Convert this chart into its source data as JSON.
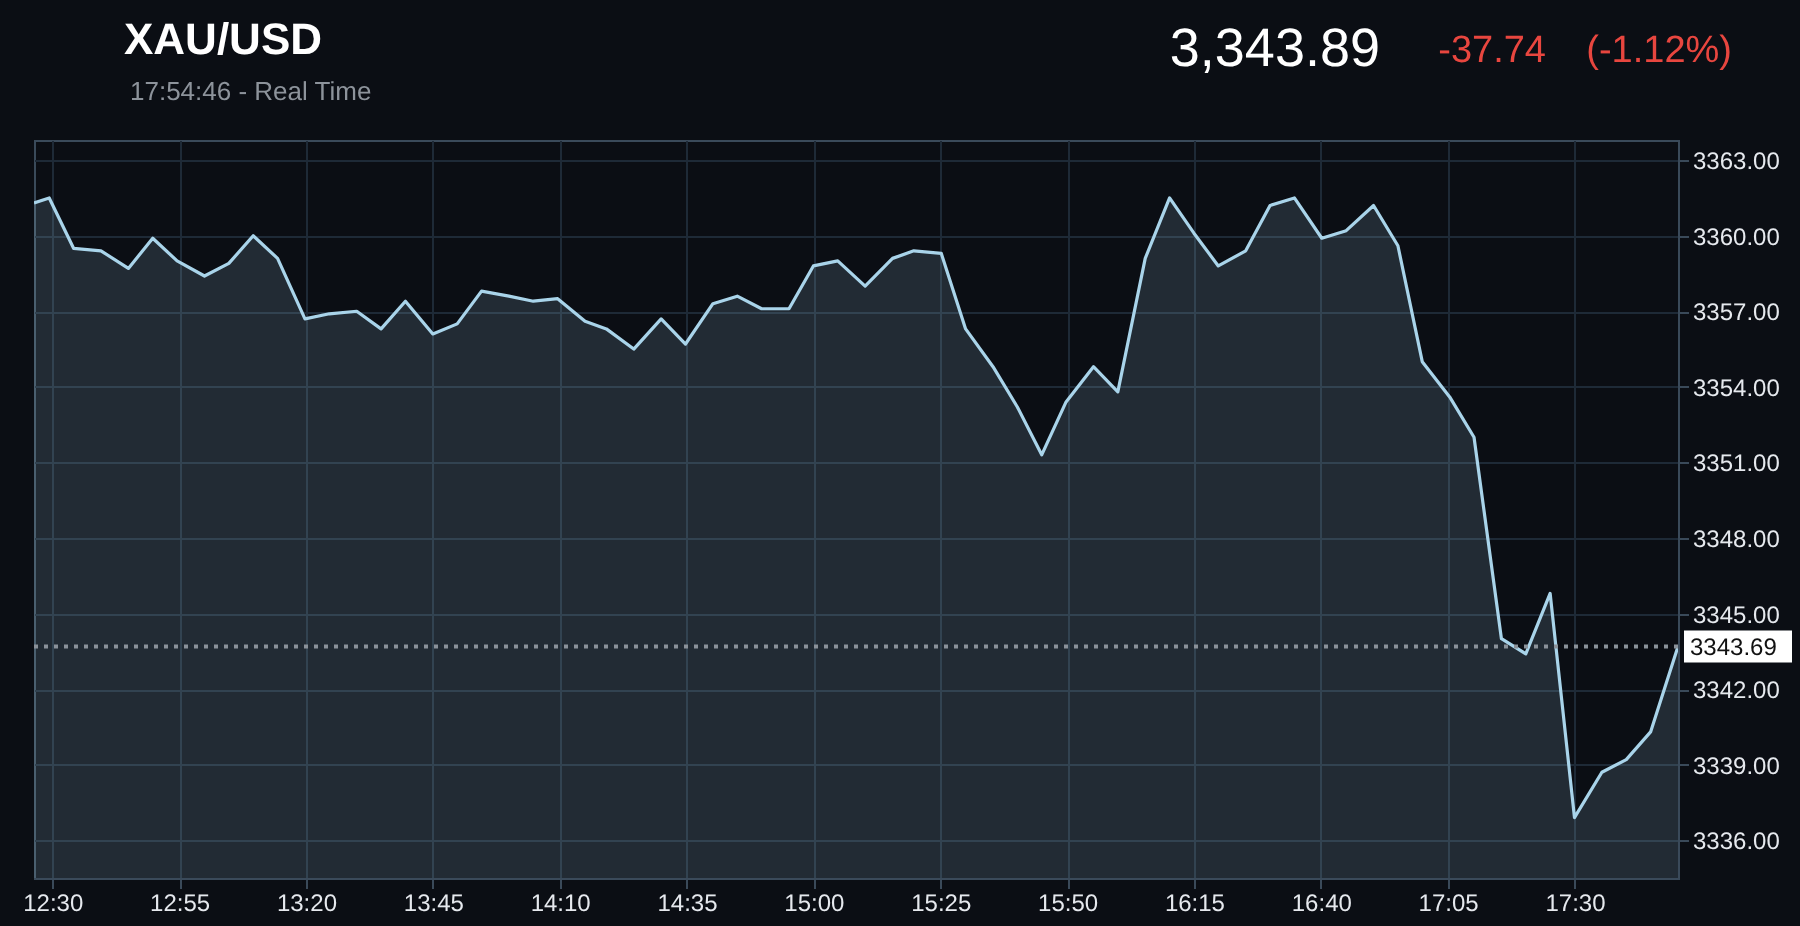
{
  "chart_data": {
    "type": "area",
    "title": "XAU/USD",
    "subtitle": "17:54:46 - Real Time",
    "annotations": [
      "3,343.89",
      "-37.74",
      "(-1.12%)"
    ],
    "x": [
      12.44,
      12.49,
      12.57,
      12.66,
      12.75,
      12.83,
      12.91,
      13.0,
      13.08,
      13.16,
      13.24,
      13.33,
      13.41,
      13.5,
      13.58,
      13.66,
      13.75,
      13.83,
      13.91,
      14.0,
      14.08,
      14.16,
      14.25,
      14.32,
      14.41,
      14.5,
      14.58,
      14.67,
      14.75,
      14.83,
      14.92,
      15.0,
      15.08,
      15.17,
      15.26,
      15.33,
      15.42,
      15.5,
      15.59,
      15.67,
      15.75,
      15.83,
      15.92,
      16.0,
      16.09,
      16.17,
      16.25,
      16.33,
      16.42,
      16.5,
      16.58,
      16.67,
      16.75,
      16.84,
      16.92,
      17.0,
      17.09,
      17.17,
      17.26,
      17.34,
      17.42,
      17.5,
      17.59,
      17.67,
      17.75,
      17.84
    ],
    "series": [
      {
        "color": "#a9d4ea",
        "values": [
          3361.3,
          3361.5,
          3359.5,
          3359.4,
          3358.7,
          3359.9,
          3359.0,
          3358.4,
          3358.9,
          3360.0,
          3359.1,
          3356.7,
          3356.9,
          3357.0,
          3356.3,
          3357.4,
          3356.1,
          3356.5,
          3357.8,
          3357.6,
          3357.4,
          3357.5,
          3356.6,
          3356.3,
          3355.5,
          3356.7,
          3355.7,
          3357.3,
          3357.6,
          3357.1,
          3357.1,
          3358.8,
          3359.0,
          3358.0,
          3359.1,
          3359.4,
          3359.3,
          3356.3,
          3354.8,
          3353.2,
          3351.3,
          3353.4,
          3354.8,
          3353.8,
          3359.1,
          3361.5,
          3360.1,
          3358.8,
          3359.4,
          3361.2,
          3361.5,
          3359.9,
          3360.2,
          3361.2,
          3359.6,
          3355.0,
          3353.6,
          3352.0,
          3344.0,
          3343.4,
          3345.8,
          3336.9,
          3338.7,
          3339.2,
          3340.3,
          3343.69
        ]
      }
    ],
    "xlim": [
      12.44,
      17.84
    ],
    "ylim": [
      3334.5,
      3363.8
    ],
    "xticks": [
      {
        "value": 12.5,
        "label": "12:30"
      },
      {
        "value": 12.9167,
        "label": "12:55"
      },
      {
        "value": 13.3333,
        "label": "13:20"
      },
      {
        "value": 13.75,
        "label": "13:45"
      },
      {
        "value": 14.1667,
        "label": "14:10"
      },
      {
        "value": 14.5833,
        "label": "14:35"
      },
      {
        "value": 15,
        "label": "15:00"
      },
      {
        "value": 15.4167,
        "label": "15:25"
      },
      {
        "value": 15.8333,
        "label": "15:50"
      },
      {
        "value": 16.25,
        "label": "16:15"
      },
      {
        "value": 16.6667,
        "label": "16:40"
      },
      {
        "value": 17.0833,
        "label": "17:05"
      },
      {
        "value": 17.5,
        "label": "17:30"
      }
    ],
    "yticks": [
      {
        "value": 3336,
        "label": "3336.00"
      },
      {
        "value": 3339,
        "label": "3339.00"
      },
      {
        "value": 3342,
        "label": "3342.00"
      },
      {
        "value": 3345,
        "label": "3345.00"
      },
      {
        "value": 3348,
        "label": "3348.00"
      },
      {
        "value": 3351,
        "label": "3351.00"
      },
      {
        "value": 3354,
        "label": "3354.00"
      },
      {
        "value": 3357,
        "label": "3357.00"
      },
      {
        "value": 3360,
        "label": "3360.00"
      },
      {
        "value": 3363,
        "label": "3363.00"
      }
    ],
    "grid": true,
    "ref_lines": [
      {
        "axis": "y",
        "value": 3343.69,
        "label": "3343.69",
        "color": "#8a9199",
        "line_style": "dotted"
      }
    ]
  }
}
